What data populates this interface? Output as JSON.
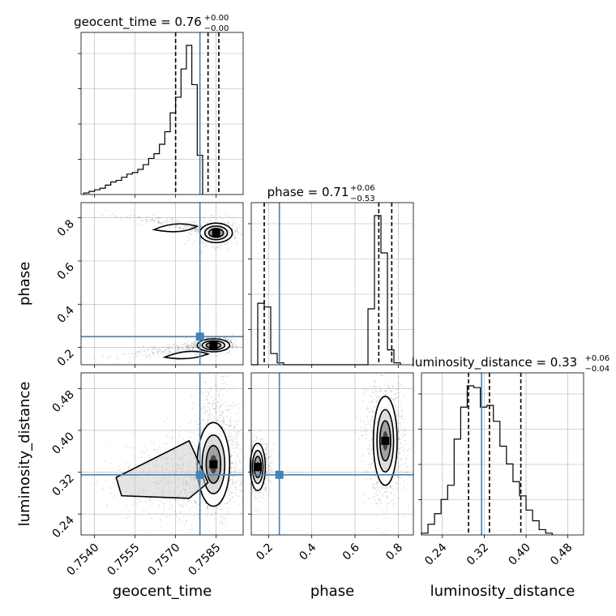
{
  "chart_data": {
    "type": "corner",
    "parameters": [
      {
        "name": "geocent_time",
        "axis_label": "geocent_time",
        "range": [
          0.7535,
          0.7595
        ],
        "ticks": [
          0.754,
          0.7555,
          0.757,
          0.7585
        ],
        "tick_labels": [
          "0.7540",
          "0.7555",
          "0.7570",
          "0.7585"
        ],
        "truth": 0.7579,
        "quantiles": [
          0.757,
          0.7582,
          0.7586
        ],
        "title": {
          "main": "geocent_time = 0.76",
          "sup": "+0.00",
          "sub": "−0.00"
        },
        "hist": {
          "start": 0.7536,
          "bin_width": 0.0002,
          "values": [
            1,
            2,
            3,
            4,
            6,
            8,
            9,
            11,
            13,
            14,
            16,
            19,
            23,
            26,
            32,
            40,
            52,
            62,
            80,
            95,
            70,
            25
          ]
        }
      },
      {
        "name": "phase",
        "axis_label": "phase",
        "range": [
          0.12,
          0.87
        ],
        "ticks": [
          0.2,
          0.4,
          0.6,
          0.8
        ],
        "tick_labels": [
          "0.2",
          "0.4",
          "0.6",
          "0.8"
        ],
        "truth": 0.25,
        "quantiles": [
          0.18,
          0.71,
          0.77
        ],
        "title": {
          "main": "phase = 0.71",
          "sup": "+0.06",
          "sub": "−0.53"
        },
        "hist": {
          "start": 0.12,
          "bin_width": 0.03,
          "values": [
            0,
            33,
            31,
            6,
            1,
            0,
            0,
            0,
            0,
            0,
            0,
            0,
            0,
            0,
            0,
            0,
            0,
            0,
            30,
            80,
            60,
            8,
            1
          ]
        }
      },
      {
        "name": "luminosity_distance",
        "axis_label": "luminosity_distance",
        "range": [
          0.2,
          0.51
        ],
        "ticks": [
          0.24,
          0.32,
          0.4,
          0.48
        ],
        "tick_labels": [
          "0.24",
          "0.32",
          "0.40",
          "0.48"
        ],
        "truth": 0.315,
        "quantiles": [
          0.29,
          0.33,
          0.39
        ],
        "title": {
          "main": "luminosity_distance = 0.33",
          "sup": "+0.06",
          "sub": "−0.04"
        },
        "hist": {
          "start": 0.2,
          "bin_width": 0.0125,
          "values": [
            1,
            6,
            12,
            20,
            28,
            54,
            72,
            84,
            83,
            72,
            73,
            64,
            50,
            40,
            30,
            22,
            14,
            8,
            3,
            1
          ]
        }
      }
    ],
    "contour_panels": [
      {
        "row": 1,
        "col": 0,
        "blobs": [
          {
            "x": 0.7585,
            "y": 0.73
          },
          {
            "x": 0.7584,
            "y": 0.21
          }
        ]
      },
      {
        "row": 2,
        "col": 0,
        "blobs": [
          {
            "x": 0.7584,
            "y": 0.335
          }
        ]
      },
      {
        "row": 2,
        "col": 1,
        "blobs": [
          {
            "x": 0.15,
            "y": 0.33
          },
          {
            "x": 0.74,
            "y": 0.38
          }
        ]
      }
    ],
    "grid": true,
    "colors": {
      "truth": "#4682b4",
      "line": "#000000",
      "grid": "#b0b0b0",
      "scatter": "#000000"
    }
  }
}
